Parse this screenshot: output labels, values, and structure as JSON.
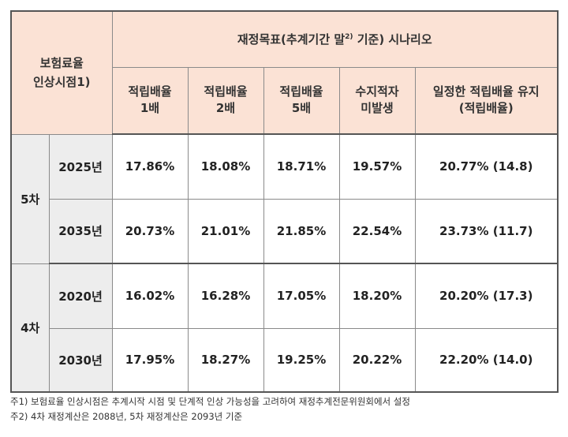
{
  "table": {
    "corner_line1": "보험료율",
    "corner_line2": "인상시점1)",
    "scenario_header_main": "재정목표(추계기간 말",
    "scenario_header_sup": "2)",
    "scenario_header_tail": " 기준) 시나리오",
    "columns": [
      {
        "line1": "적립배율",
        "line2": "1배"
      },
      {
        "line1": "적립배율",
        "line2": "2배"
      },
      {
        "line1": "적립배율",
        "line2": "5배"
      },
      {
        "line1": "수지적자",
        "line2": "미발생"
      },
      {
        "line1": "일정한 적립배율 유지",
        "line2": "(적립배율)"
      }
    ],
    "groups": [
      {
        "label": "5차",
        "rows": [
          {
            "year": "2025년",
            "values": [
              "17.86%",
              "18.08%",
              "18.71%",
              "19.57%",
              "20.77% (14.8)"
            ]
          },
          {
            "year": "2035년",
            "values": [
              "20.73%",
              "21.01%",
              "21.85%",
              "22.54%",
              "23.73% (11.7)"
            ]
          }
        ]
      },
      {
        "label": "4차",
        "rows": [
          {
            "year": "2020년",
            "values": [
              "16.02%",
              "16.28%",
              "17.05%",
              "18.20%",
              "20.20% (17.3)"
            ]
          },
          {
            "year": "2030년",
            "values": [
              "17.95%",
              "18.27%",
              "19.25%",
              "20.22%",
              "22.20% (14.0)"
            ]
          }
        ]
      }
    ]
  },
  "notes": [
    "주1) 보험료율 인상시점은 추계시작 시점 및 단계적 인상 가능성을 고려하여 재정추계전문위원회에서 설정",
    "주2) 4차 재정계산은 2088년, 5차 재정계산은 2093년 기준"
  ]
}
